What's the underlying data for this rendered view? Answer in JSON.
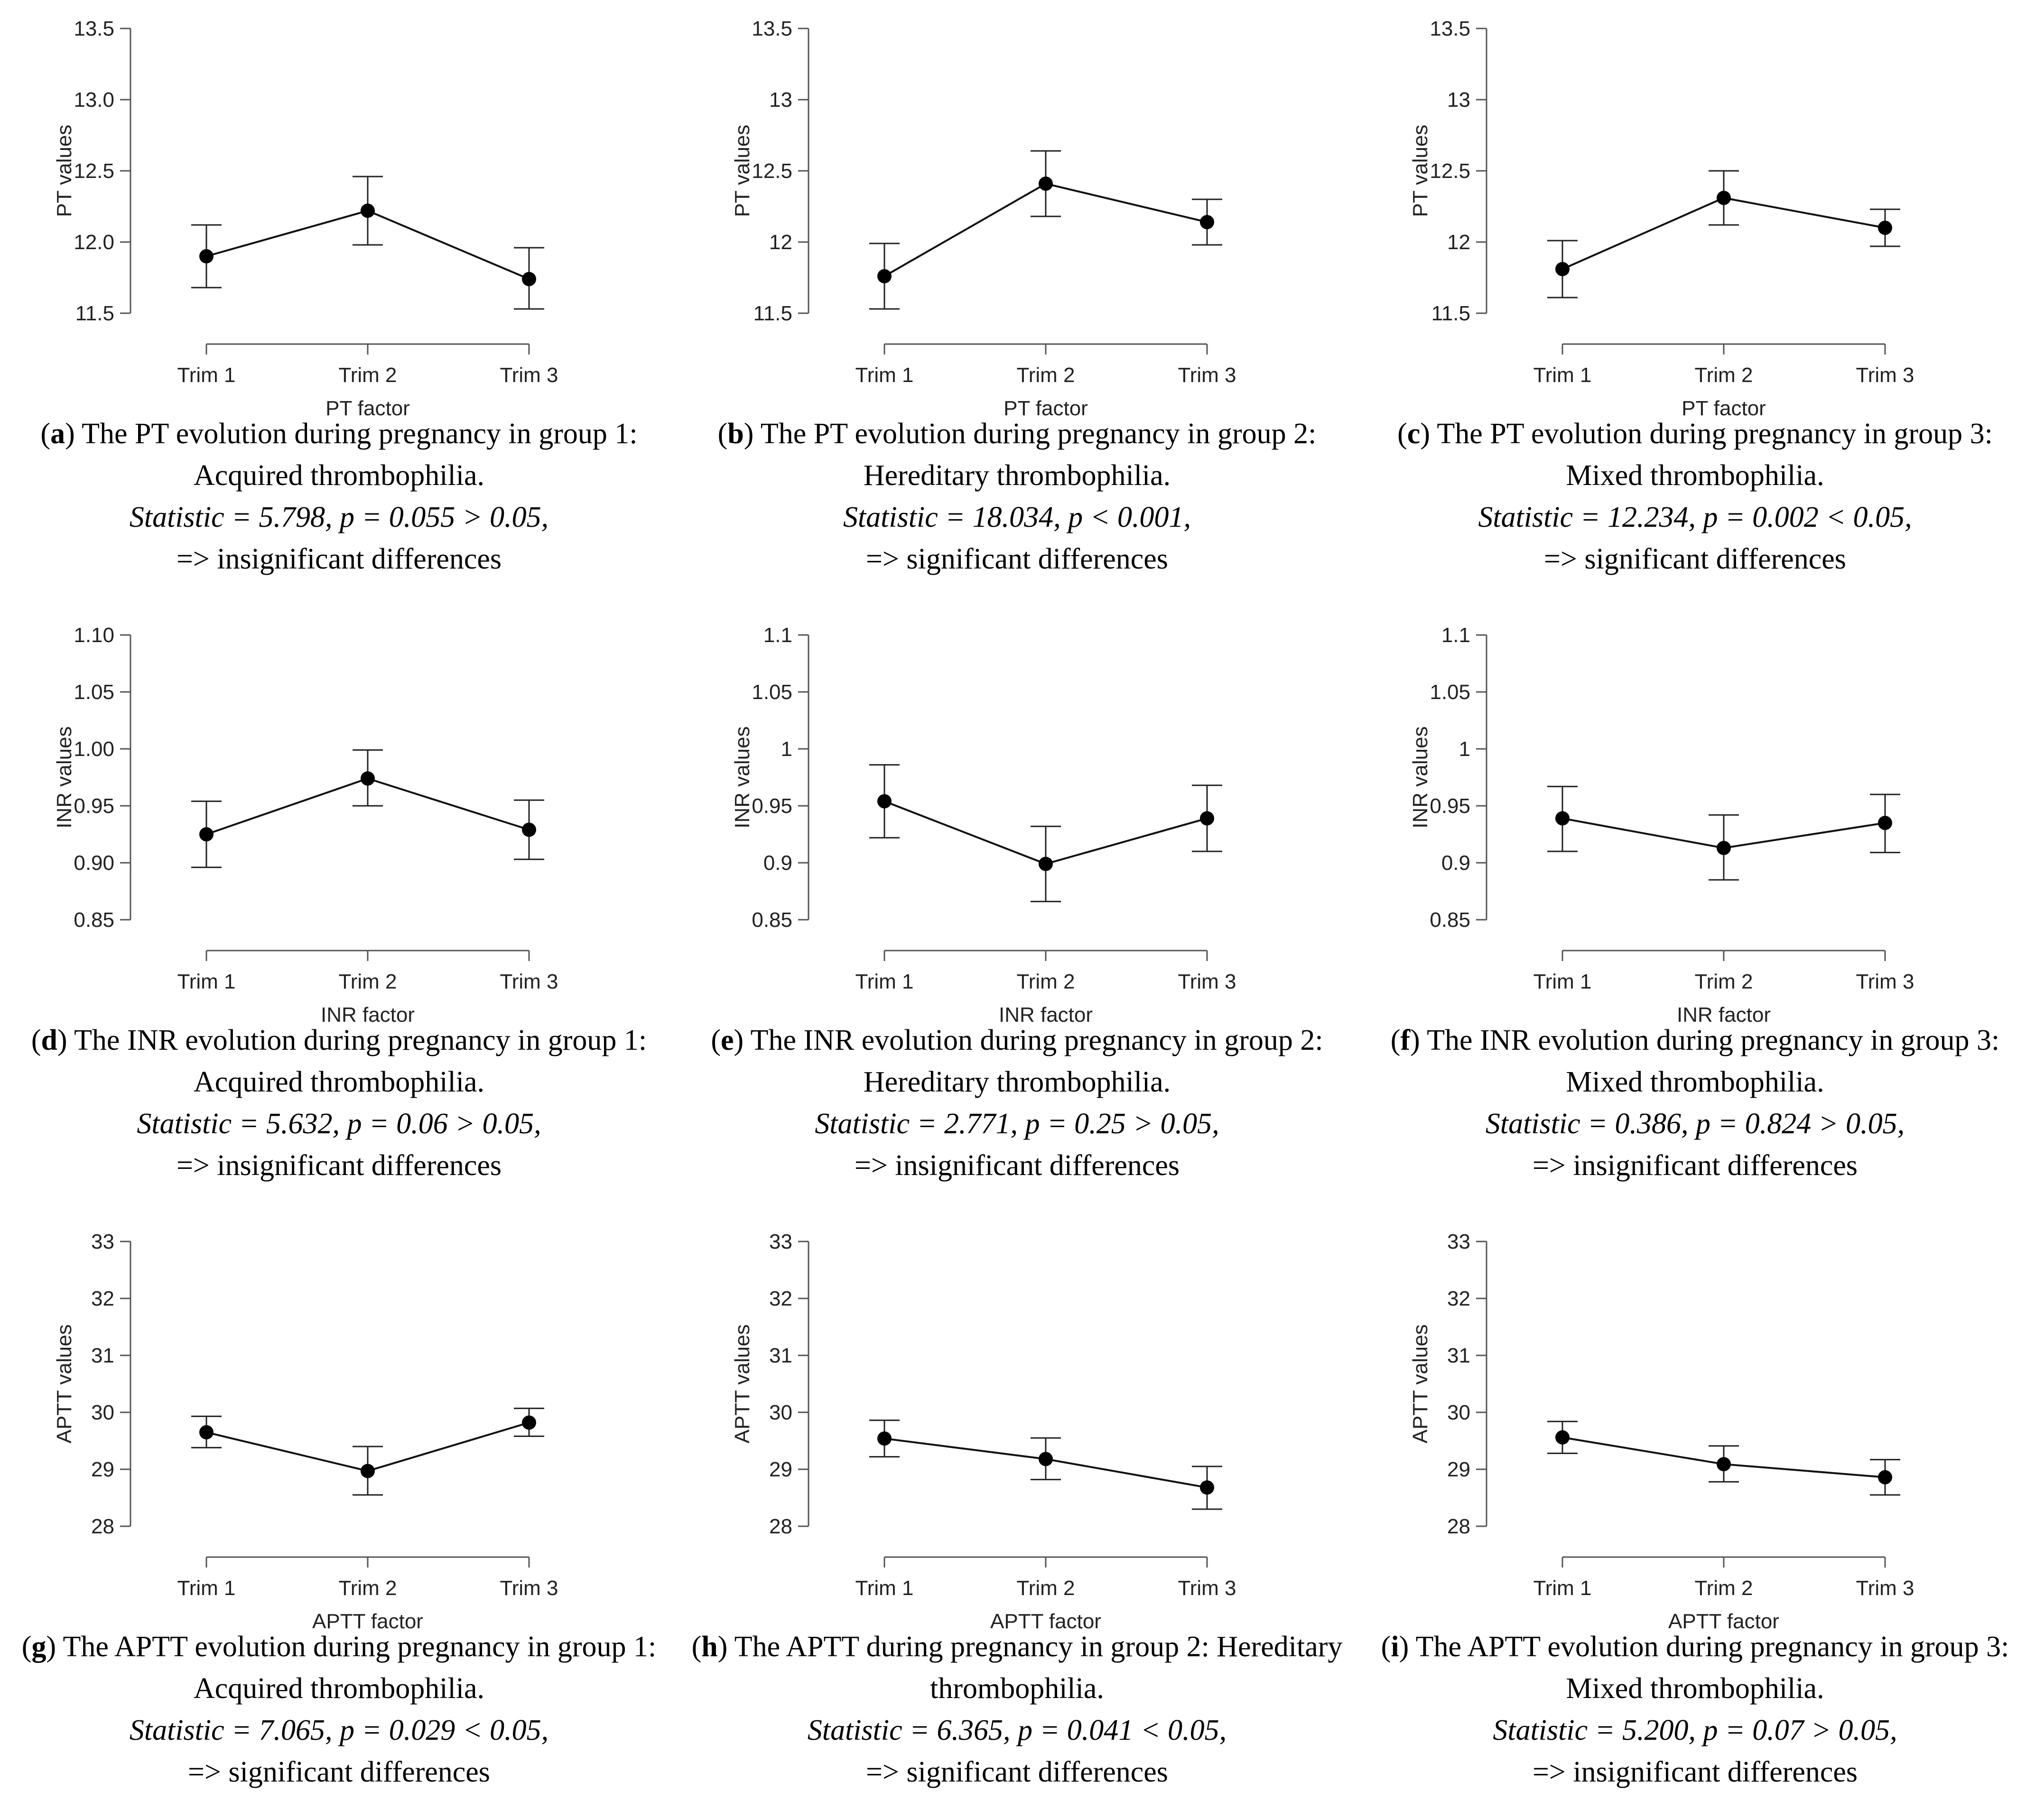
{
  "chart_data": [
    {
      "id": "a",
      "type": "line",
      "ylabel": "PT values",
      "xlabel": "PT factor",
      "categories": [
        "Trim 1",
        "Trim 2",
        "Trim 3"
      ],
      "yticks": [
        "11.5",
        "12.0",
        "12.5",
        "13.0",
        "13.5"
      ],
      "ylim": [
        11.5,
        13.5
      ],
      "series": [
        {
          "name": "PT",
          "values": [
            11.9,
            12.22,
            11.74
          ],
          "ci_low": [
            11.68,
            11.98,
            11.53
          ],
          "ci_high": [
            12.12,
            12.46,
            11.96
          ]
        }
      ],
      "caption": {
        "letter": "a",
        "title": "The PT evolution during pregnancy in group 1: Acquired thrombophilia.",
        "statistic": "Statistic = 5.798, p = 0.055 > 0.05,",
        "conclusion": "=> insignificant differences"
      }
    },
    {
      "id": "b",
      "type": "line",
      "ylabel": "PT values",
      "xlabel": "PT factor",
      "categories": [
        "Trim 1",
        "Trim 2",
        "Trim 3"
      ],
      "yticks": [
        "11.5",
        "12",
        "12.5",
        "13",
        "13.5"
      ],
      "ylim": [
        11.5,
        13.5
      ],
      "series": [
        {
          "name": "PT",
          "values": [
            11.76,
            12.41,
            12.14
          ],
          "ci_low": [
            11.53,
            12.18,
            11.98
          ],
          "ci_high": [
            11.99,
            12.64,
            12.3
          ]
        }
      ],
      "caption": {
        "letter": "b",
        "title": "The PT evolution during pregnancy in group 2: Hereditary thrombophilia.",
        "statistic": "Statistic = 18.034, p < 0.001,",
        "conclusion": "=> significant differences"
      }
    },
    {
      "id": "c",
      "type": "line",
      "ylabel": "PT values",
      "xlabel": "PT factor",
      "categories": [
        "Trim 1",
        "Trim 2",
        "Trim 3"
      ],
      "yticks": [
        "11.5",
        "12",
        "12.5",
        "13",
        "13.5"
      ],
      "ylim": [
        11.5,
        13.5
      ],
      "series": [
        {
          "name": "PT",
          "values": [
            11.81,
            12.31,
            12.1
          ],
          "ci_low": [
            11.61,
            12.12,
            11.97
          ],
          "ci_high": [
            12.01,
            12.5,
            12.23
          ]
        }
      ],
      "caption": {
        "letter": "c",
        "title": "The PT evolution during pregnancy in group 3: Mixed thrombophilia.",
        "statistic": "Statistic = 12.234, p = 0.002 < 0.05,",
        "conclusion": "=> significant differences"
      }
    },
    {
      "id": "d",
      "type": "line",
      "ylabel": "INR values",
      "xlabel": "INR factor",
      "categories": [
        "Trim 1",
        "Trim 2",
        "Trim 3"
      ],
      "yticks": [
        "0.85",
        "0.90",
        "0.95",
        "1.00",
        "1.05",
        "1.10"
      ],
      "ylim": [
        0.85,
        1.1
      ],
      "series": [
        {
          "name": "INR",
          "values": [
            0.925,
            0.974,
            0.929
          ],
          "ci_low": [
            0.896,
            0.95,
            0.903
          ],
          "ci_high": [
            0.954,
            0.999,
            0.955
          ]
        }
      ],
      "caption": {
        "letter": "d",
        "title": "The INR evolution during pregnancy in group 1: Acquired thrombophilia.",
        "statistic": "Statistic = 5.632, p = 0.06 > 0.05,",
        "conclusion": "=> insignificant differences"
      }
    },
    {
      "id": "e",
      "type": "line",
      "ylabel": "INR values",
      "xlabel": "INR factor",
      "categories": [
        "Trim 1",
        "Trim 2",
        "Trim 3"
      ],
      "yticks": [
        "0.85",
        "0.9",
        "0.95",
        "1",
        "1.05",
        "1.1"
      ],
      "ylim": [
        0.85,
        1.1
      ],
      "series": [
        {
          "name": "INR",
          "values": [
            0.954,
            0.899,
            0.939
          ],
          "ci_low": [
            0.922,
            0.866,
            0.91
          ],
          "ci_high": [
            0.986,
            0.932,
            0.968
          ]
        }
      ],
      "caption": {
        "letter": "e",
        "title": "The INR evolution during pregnancy in group 2: Hereditary thrombophilia.",
        "statistic": "Statistic = 2.771, p = 0.25 > 0.05,",
        "conclusion": "=> insignificant differences"
      }
    },
    {
      "id": "f",
      "type": "line",
      "ylabel": "INR values",
      "xlabel": "INR factor",
      "categories": [
        "Trim 1",
        "Trim 2",
        "Trim 3"
      ],
      "yticks": [
        "0.85",
        "0.9",
        "0.95",
        "1",
        "1.05",
        "1.1"
      ],
      "ylim": [
        0.85,
        1.1
      ],
      "series": [
        {
          "name": "INR",
          "values": [
            0.939,
            0.913,
            0.935
          ],
          "ci_low": [
            0.91,
            0.885,
            0.909
          ],
          "ci_high": [
            0.967,
            0.942,
            0.96
          ]
        }
      ],
      "caption": {
        "letter": "f",
        "title": "The INR evolution during pregnancy in group 3: Mixed thrombophilia.",
        "statistic": "Statistic = 0.386, p = 0.824 > 0.05,",
        "conclusion": "=> insignificant differences"
      }
    },
    {
      "id": "g",
      "type": "line",
      "ylabel": "APTT values",
      "xlabel": "APTT factor",
      "categories": [
        "Trim 1",
        "Trim 2",
        "Trim 3"
      ],
      "yticks": [
        "28",
        "29",
        "30",
        "31",
        "32",
        "33"
      ],
      "ylim": [
        28,
        33
      ],
      "series": [
        {
          "name": "APTT",
          "values": [
            29.65,
            28.97,
            29.82
          ],
          "ci_low": [
            29.38,
            28.55,
            29.58
          ],
          "ci_high": [
            29.93,
            29.4,
            30.07
          ]
        }
      ],
      "caption": {
        "letter": "g",
        "title": "The APTT evolution during pregnancy in group 1: Acquired thrombophilia.",
        "statistic": "Statistic = 7.065, p = 0.029 < 0.05,",
        "conclusion": "=> significant differences"
      }
    },
    {
      "id": "h",
      "type": "line",
      "ylabel": "APTT values",
      "xlabel": "APTT factor",
      "categories": [
        "Trim 1",
        "Trim 2",
        "Trim 3"
      ],
      "yticks": [
        "28",
        "29",
        "30",
        "31",
        "32",
        "33"
      ],
      "ylim": [
        28,
        33
      ],
      "series": [
        {
          "name": "APTT",
          "values": [
            29.54,
            29.18,
            28.68
          ],
          "ci_low": [
            29.22,
            28.82,
            28.3
          ],
          "ci_high": [
            29.86,
            29.55,
            29.05
          ]
        }
      ],
      "caption": {
        "letter": "h",
        "title": "The APTT during pregnancy in group 2: Hereditary thrombophilia.",
        "statistic": "Statistic = 6.365, p = 0.041 < 0.05,",
        "conclusion": "=> significant differences"
      }
    },
    {
      "id": "i",
      "type": "line",
      "ylabel": "APTT values",
      "xlabel": "APTT factor",
      "categories": [
        "Trim 1",
        "Trim 2",
        "Trim 3"
      ],
      "yticks": [
        "28",
        "29",
        "30",
        "31",
        "32",
        "33"
      ],
      "ylim": [
        28,
        33
      ],
      "series": [
        {
          "name": "APTT",
          "values": [
            29.56,
            29.09,
            28.86
          ],
          "ci_low": [
            29.28,
            28.78,
            28.55
          ],
          "ci_high": [
            29.84,
            29.41,
            29.17
          ]
        }
      ],
      "caption": {
        "letter": "i",
        "title": "The APTT evolution during pregnancy in group 3: Mixed thrombophilia.",
        "statistic": "Statistic = 5.200, p = 0.07 > 0.05,",
        "conclusion": "=> insignificant differences"
      }
    }
  ]
}
